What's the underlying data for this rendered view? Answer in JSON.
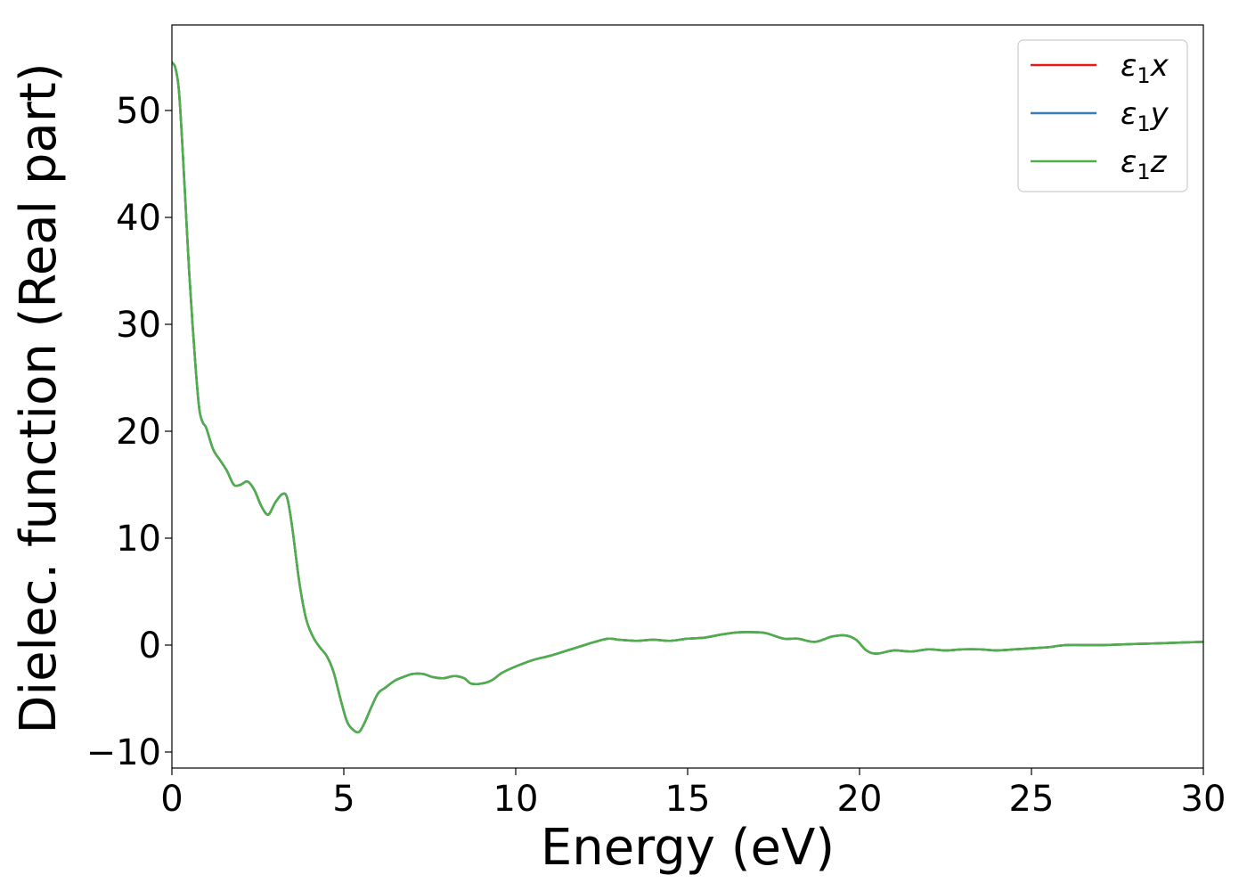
{
  "chart_data": {
    "type": "line",
    "xlabel": "Energy (eV)",
    "ylabel": "Dielec. function (Real part)",
    "xlim": [
      0,
      30
    ],
    "ylim": [
      -11.5,
      58
    ],
    "xticks": [
      0,
      5,
      10,
      15,
      20,
      25,
      30
    ],
    "xtick_labels": [
      "0",
      "5",
      "10",
      "15",
      "20",
      "25",
      "30"
    ],
    "yticks": [
      -10,
      0,
      10,
      20,
      30,
      40,
      50
    ],
    "ytick_labels": [
      "−10",
      "0",
      "10",
      "20",
      "30",
      "40",
      "50"
    ],
    "legend_position": "top-right",
    "grid": false,
    "series": [
      {
        "name": "ε₁x",
        "legend_main": "ε",
        "legend_sub": "1",
        "legend_var": "x",
        "color": "#e41a1c",
        "x": [
          0.0,
          0.1,
          0.2,
          0.3,
          0.4,
          0.5,
          0.6,
          0.7,
          0.8,
          0.9,
          1.0,
          1.2,
          1.4,
          1.6,
          1.8,
          2.0,
          2.2,
          2.4,
          2.6,
          2.8,
          3.0,
          3.2,
          3.35,
          3.5,
          3.7,
          3.9,
          4.1,
          4.3,
          4.5,
          4.7,
          4.9,
          5.1,
          5.3,
          5.45,
          5.6,
          5.8,
          6.0,
          6.2,
          6.5,
          6.8,
          7.0,
          7.3,
          7.6,
          7.9,
          8.2,
          8.5,
          8.7,
          9.0,
          9.3,
          9.6,
          10.0,
          10.5,
          11.0,
          11.5,
          12.0,
          12.3,
          12.7,
          13.0,
          13.5,
          14.0,
          14.5,
          15.0,
          15.5,
          16.0,
          16.5,
          17.0,
          17.3,
          17.8,
          18.2,
          18.7,
          19.2,
          19.6,
          19.9,
          20.2,
          20.5,
          21.0,
          21.5,
          22.0,
          22.5,
          23.0,
          23.5,
          24.0,
          24.5,
          25.0,
          25.5,
          26.0,
          27.0,
          28.0,
          29.0,
          30.0
        ],
        "y": [
          54.5,
          54.0,
          52.0,
          47.0,
          41.0,
          35.0,
          30.0,
          25.5,
          22.0,
          20.8,
          20.3,
          18.3,
          17.3,
          16.3,
          15.0,
          15.0,
          15.3,
          14.5,
          13.0,
          12.2,
          13.3,
          14.1,
          13.8,
          11.0,
          6.0,
          2.5,
          0.8,
          -0.2,
          -1.0,
          -2.5,
          -5.0,
          -7.2,
          -8.0,
          -8.1,
          -7.3,
          -5.8,
          -4.5,
          -4.0,
          -3.3,
          -2.9,
          -2.7,
          -2.7,
          -3.0,
          -3.1,
          -2.9,
          -3.1,
          -3.6,
          -3.6,
          -3.3,
          -2.6,
          -2.0,
          -1.4,
          -1.0,
          -0.5,
          0.0,
          0.3,
          0.6,
          0.5,
          0.4,
          0.5,
          0.4,
          0.6,
          0.7,
          1.0,
          1.2,
          1.2,
          1.1,
          0.6,
          0.6,
          0.3,
          0.8,
          0.9,
          0.5,
          -0.5,
          -0.8,
          -0.5,
          -0.6,
          -0.4,
          -0.5,
          -0.4,
          -0.4,
          -0.5,
          -0.4,
          -0.3,
          -0.2,
          0.0,
          0.0,
          0.1,
          0.2,
          0.3
        ]
      },
      {
        "name": "ε₁y",
        "legend_main": "ε",
        "legend_sub": "1",
        "legend_var": "y",
        "color": "#377eb8",
        "x": [
          0.0,
          0.1,
          0.2,
          0.3,
          0.4,
          0.5,
          0.6,
          0.7,
          0.8,
          0.9,
          1.0,
          1.2,
          1.4,
          1.6,
          1.8,
          2.0,
          2.2,
          2.4,
          2.6,
          2.8,
          3.0,
          3.2,
          3.35,
          3.5,
          3.7,
          3.9,
          4.1,
          4.3,
          4.5,
          4.7,
          4.9,
          5.1,
          5.3,
          5.45,
          5.6,
          5.8,
          6.0,
          6.2,
          6.5,
          6.8,
          7.0,
          7.3,
          7.6,
          7.9,
          8.2,
          8.5,
          8.7,
          9.0,
          9.3,
          9.6,
          10.0,
          10.5,
          11.0,
          11.5,
          12.0,
          12.3,
          12.7,
          13.0,
          13.5,
          14.0,
          14.5,
          15.0,
          15.5,
          16.0,
          16.5,
          17.0,
          17.3,
          17.8,
          18.2,
          18.7,
          19.2,
          19.6,
          19.9,
          20.2,
          20.5,
          21.0,
          21.5,
          22.0,
          22.5,
          23.0,
          23.5,
          24.0,
          24.5,
          25.0,
          25.5,
          26.0,
          27.0,
          28.0,
          29.0,
          30.0
        ],
        "y": [
          54.5,
          54.0,
          52.0,
          47.0,
          41.0,
          35.0,
          30.0,
          25.5,
          22.0,
          20.8,
          20.3,
          18.3,
          17.3,
          16.3,
          15.0,
          15.0,
          15.3,
          14.5,
          13.0,
          12.2,
          13.3,
          14.1,
          13.8,
          11.0,
          6.0,
          2.5,
          0.8,
          -0.2,
          -1.0,
          -2.5,
          -5.0,
          -7.2,
          -8.0,
          -8.1,
          -7.3,
          -5.8,
          -4.5,
          -4.0,
          -3.3,
          -2.9,
          -2.7,
          -2.7,
          -3.0,
          -3.1,
          -2.9,
          -3.1,
          -3.6,
          -3.6,
          -3.3,
          -2.6,
          -2.0,
          -1.4,
          -1.0,
          -0.5,
          0.0,
          0.3,
          0.6,
          0.5,
          0.4,
          0.5,
          0.4,
          0.6,
          0.7,
          1.0,
          1.2,
          1.2,
          1.1,
          0.6,
          0.6,
          0.3,
          0.8,
          0.9,
          0.5,
          -0.5,
          -0.8,
          -0.5,
          -0.6,
          -0.4,
          -0.5,
          -0.4,
          -0.4,
          -0.5,
          -0.4,
          -0.3,
          -0.2,
          0.0,
          0.0,
          0.1,
          0.2,
          0.3
        ]
      },
      {
        "name": "ε₁z",
        "legend_main": "ε",
        "legend_sub": "1",
        "legend_var": "z",
        "color": "#4daf4a",
        "x": [
          0.0,
          0.1,
          0.2,
          0.3,
          0.4,
          0.5,
          0.6,
          0.7,
          0.8,
          0.9,
          1.0,
          1.2,
          1.4,
          1.6,
          1.8,
          2.0,
          2.2,
          2.4,
          2.6,
          2.8,
          3.0,
          3.2,
          3.35,
          3.5,
          3.7,
          3.9,
          4.1,
          4.3,
          4.5,
          4.7,
          4.9,
          5.1,
          5.3,
          5.45,
          5.6,
          5.8,
          6.0,
          6.2,
          6.5,
          6.8,
          7.0,
          7.3,
          7.6,
          7.9,
          8.2,
          8.5,
          8.7,
          9.0,
          9.3,
          9.6,
          10.0,
          10.5,
          11.0,
          11.5,
          12.0,
          12.3,
          12.7,
          13.0,
          13.5,
          14.0,
          14.5,
          15.0,
          15.5,
          16.0,
          16.5,
          17.0,
          17.3,
          17.8,
          18.2,
          18.7,
          19.2,
          19.6,
          19.9,
          20.2,
          20.5,
          21.0,
          21.5,
          22.0,
          22.5,
          23.0,
          23.5,
          24.0,
          24.5,
          25.0,
          25.5,
          26.0,
          27.0,
          28.0,
          29.0,
          30.0
        ],
        "y": [
          54.5,
          54.0,
          52.0,
          47.0,
          41.0,
          35.0,
          30.0,
          25.5,
          22.0,
          20.8,
          20.3,
          18.3,
          17.3,
          16.3,
          15.0,
          15.0,
          15.3,
          14.5,
          13.0,
          12.2,
          13.3,
          14.1,
          13.8,
          11.0,
          6.0,
          2.5,
          0.8,
          -0.2,
          -1.0,
          -2.5,
          -5.0,
          -7.2,
          -8.0,
          -8.1,
          -7.3,
          -5.8,
          -4.5,
          -4.0,
          -3.3,
          -2.9,
          -2.7,
          -2.7,
          -3.0,
          -3.1,
          -2.9,
          -3.1,
          -3.6,
          -3.6,
          -3.3,
          -2.6,
          -2.0,
          -1.4,
          -1.0,
          -0.5,
          0.0,
          0.3,
          0.6,
          0.5,
          0.4,
          0.5,
          0.4,
          0.6,
          0.7,
          1.0,
          1.2,
          1.2,
          1.1,
          0.6,
          0.6,
          0.3,
          0.8,
          0.9,
          0.5,
          -0.5,
          -0.8,
          -0.5,
          -0.6,
          -0.4,
          -0.5,
          -0.4,
          -0.4,
          -0.5,
          -0.4,
          -0.3,
          -0.2,
          0.0,
          0.0,
          0.1,
          0.2,
          0.3
        ]
      }
    ]
  }
}
